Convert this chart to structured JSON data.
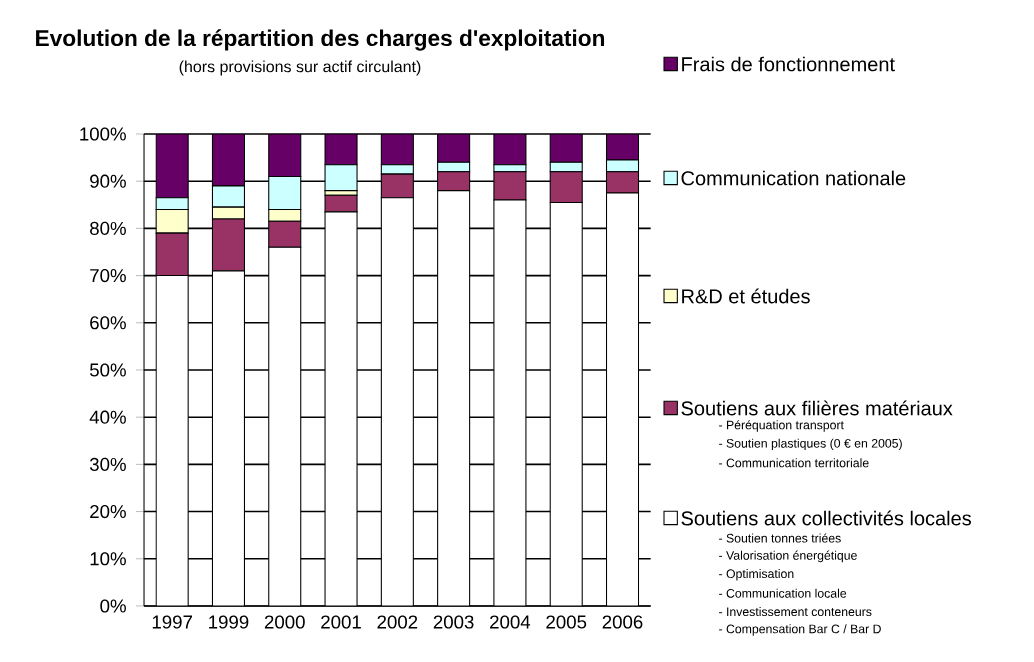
{
  "chart_data": {
    "type": "bar",
    "stacked": true,
    "title": "Evolution de la répartition des charges d'exploitation",
    "subtitle": "(hors provisions sur actif circulant)",
    "categories": [
      "1997",
      "1999",
      "2000",
      "2001",
      "2002",
      "2003",
      "2004",
      "2005",
      "2006"
    ],
    "series": [
      {
        "name": "Soutiens aux collectivités locales",
        "color": "#ffffff",
        "values": [
          70,
          71,
          76,
          83.5,
          86.5,
          88,
          86,
          85.5,
          87.5
        ]
      },
      {
        "name": "Soutiens aux filières matériaux",
        "color": "#993366",
        "values": [
          9,
          11,
          5.5,
          3.5,
          5,
          4,
          6,
          6.5,
          4.5
        ]
      },
      {
        "name": "R&D et études",
        "color": "#ffffcc",
        "values": [
          5,
          2.5,
          2.5,
          1,
          0,
          0,
          0,
          0,
          0
        ]
      },
      {
        "name": "Communication nationale",
        "color": "#ccffff",
        "values": [
          2.5,
          4.5,
          7,
          5.5,
          2,
          2,
          1.5,
          2,
          2.5
        ]
      },
      {
        "name": "Frais de fonctionnement",
        "color": "#660066",
        "values": [
          13.5,
          11,
          9,
          6.5,
          6.5,
          6,
          6.5,
          6,
          5.5
        ]
      }
    ],
    "ylim": [
      0,
      100
    ],
    "yticks": [
      {
        "value": 0,
        "label": "0%"
      },
      {
        "value": 10,
        "label": "10%"
      },
      {
        "value": 20,
        "label": "20%"
      },
      {
        "value": 30,
        "label": "30%"
      },
      {
        "value": 40,
        "label": "40%"
      },
      {
        "value": 50,
        "label": "50%"
      },
      {
        "value": 60,
        "label": "60%"
      },
      {
        "value": 70,
        "label": "70%"
      },
      {
        "value": 80,
        "label": "80%"
      },
      {
        "value": 90,
        "label": "90%"
      },
      {
        "value": 100,
        "label": "100%"
      }
    ],
    "grid": "y",
    "legend": "right",
    "annotations": [
      "- Péréquation transport",
      "- Soutien plastiques (0 € en 2005)",
      "- Communication territoriale",
      "- Soutien tonnes triées",
      "- Valorisation énergétique",
      "- Optimisation",
      "- Communication locale",
      "- Investissement conteneurs",
      "- Compensation Bar C / Bar D"
    ]
  }
}
